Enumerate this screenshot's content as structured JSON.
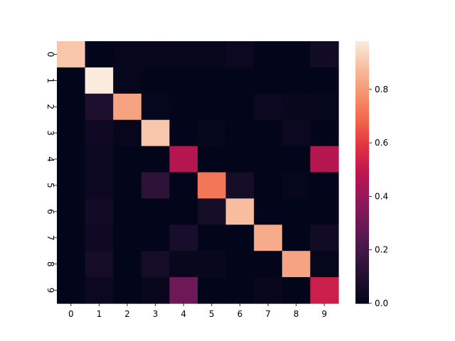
{
  "chart_data": {
    "type": "heatmap",
    "title": "",
    "xlabel": "",
    "ylabel": "",
    "x_categories": [
      "0",
      "1",
      "2",
      "3",
      "4",
      "5",
      "6",
      "7",
      "8",
      "9"
    ],
    "y_categories": [
      "0",
      "1",
      "2",
      "3",
      "4",
      "5",
      "6",
      "7",
      "8",
      "9"
    ],
    "colormap": "rocket",
    "vmin": 0.0,
    "vmax": 0.98,
    "colorbar_ticks": [
      "0.0",
      "0.2",
      "0.4",
      "0.6",
      "0.8"
    ],
    "colorbar_tick_values": [
      0.0,
      0.2,
      0.4,
      0.6,
      0.8
    ],
    "values": [
      [
        0.9,
        0.0,
        0.01,
        0.02,
        0.01,
        0.01,
        0.03,
        0.0,
        0.0,
        0.05
      ],
      [
        0.0,
        0.98,
        0.01,
        0.0,
        0.0,
        0.0,
        0.0,
        0.0,
        0.0,
        0.0
      ],
      [
        0.0,
        0.09,
        0.82,
        0.01,
        0.0,
        0.0,
        0.0,
        0.03,
        0.02,
        0.01
      ],
      [
        0.0,
        0.04,
        0.01,
        0.9,
        0.0,
        0.01,
        0.0,
        0.0,
        0.03,
        0.0
      ],
      [
        0.0,
        0.03,
        0.0,
        0.0,
        0.47,
        0.0,
        0.0,
        0.0,
        0.0,
        0.47
      ],
      [
        0.0,
        0.03,
        0.0,
        0.13,
        0.0,
        0.72,
        0.06,
        0.0,
        0.01,
        0.0
      ],
      [
        0.0,
        0.05,
        0.0,
        0.0,
        0.0,
        0.06,
        0.88,
        0.0,
        0.0,
        0.0
      ],
      [
        0.0,
        0.04,
        0.0,
        0.0,
        0.07,
        0.0,
        0.0,
        0.84,
        0.0,
        0.05
      ],
      [
        0.0,
        0.06,
        0.0,
        0.06,
        0.02,
        0.02,
        0.0,
        0.0,
        0.82,
        0.01
      ],
      [
        0.0,
        0.03,
        0.0,
        0.02,
        0.3,
        0.0,
        0.0,
        0.02,
        0.0,
        0.52
      ]
    ]
  }
}
